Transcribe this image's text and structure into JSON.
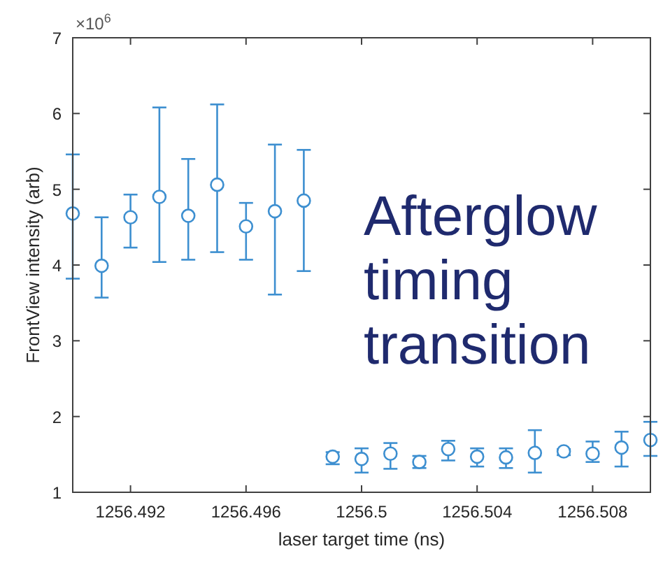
{
  "chart_data": {
    "type": "scatter",
    "xlabel": "laser target time (ns)",
    "ylabel": "FrontView intensity (arb)",
    "x": [
      1256.49,
      1256.491,
      1256.492,
      1256.493,
      1256.494,
      1256.495,
      1256.496,
      1256.497,
      1256.498,
      1256.499,
      1256.5,
      1256.501,
      1256.502,
      1256.503,
      1256.504,
      1256.505,
      1256.506,
      1256.507,
      1256.508,
      1256.509,
      1256.51
    ],
    "series": [
      {
        "color": "#3d8fd0",
        "values": [
          4.68,
          3.99,
          4.63,
          4.9,
          4.65,
          5.06,
          4.51,
          4.71,
          4.85,
          1.47,
          1.44,
          1.51,
          1.4,
          1.57,
          1.47,
          1.46,
          1.52,
          1.54,
          1.51,
          1.59,
          1.69
        ],
        "errors": [
          [
            3.82,
            5.46
          ],
          [
            3.57,
            4.63
          ],
          [
            4.23,
            4.93
          ],
          [
            4.04,
            6.08
          ],
          [
            4.07,
            5.4
          ],
          [
            4.17,
            6.12
          ],
          [
            4.07,
            4.82
          ],
          [
            3.61,
            5.59
          ],
          [
            3.92,
            5.52
          ],
          [
            1.37,
            1.53
          ],
          [
            1.26,
            1.58
          ],
          [
            1.31,
            1.65
          ],
          [
            1.32,
            1.48
          ],
          [
            1.42,
            1.68
          ],
          [
            1.34,
            1.58
          ],
          [
            1.32,
            1.58
          ],
          [
            1.26,
            1.82
          ],
          [
            1.49,
            1.57
          ],
          [
            1.4,
            1.67
          ],
          [
            1.34,
            1.8
          ],
          [
            1.48,
            1.93
          ]
        ]
      }
    ],
    "xlim": [
      1256.49,
      1256.51
    ],
    "xticks": [
      1256.492,
      1256.496,
      1256.5,
      1256.504,
      1256.508
    ],
    "ylim": [
      1,
      7
    ],
    "yticks": [
      1,
      2,
      3,
      4,
      5,
      6,
      7
    ],
    "marker": "circle",
    "grid": false,
    "annotations": [
      "×10$^{6}$",
      "Afterglow timing transition"
    ]
  }
}
